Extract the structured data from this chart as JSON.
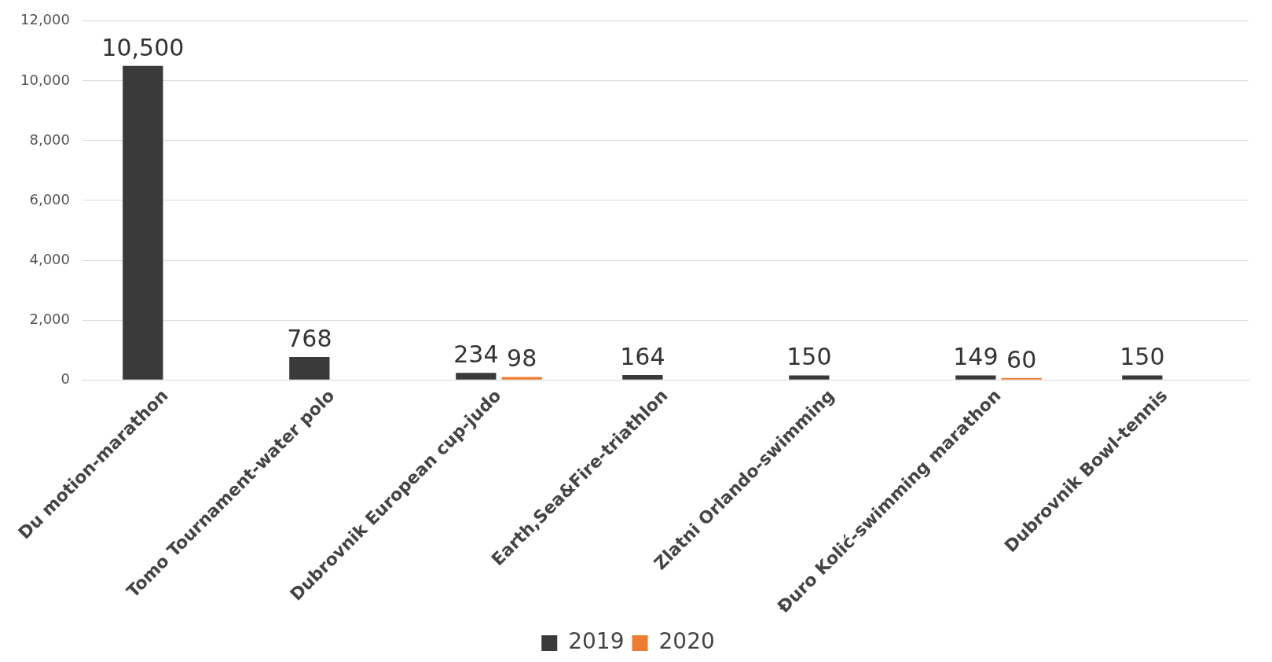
{
  "chart_data": {
    "type": "bar",
    "categories": [
      "Du motion-marathon",
      "Tomo Tournament-water polo",
      "Dubrovnik European cup-judo",
      "Earth,Sea&Fire-triathlon",
      "Zlatni Orlando-swimming",
      "Đuro Kolić-swimming marathon",
      "Dubrovnik Bowl-tennis"
    ],
    "series": [
      {
        "name": "2019",
        "color": "#3a3a3a",
        "values": [
          10500,
          768,
          234,
          164,
          150,
          149,
          150
        ],
        "value_labels": [
          "10,500",
          "768",
          "234",
          "164",
          "150",
          "149",
          "150"
        ]
      },
      {
        "name": "2020",
        "color": "#ed7d31",
        "values": [
          null,
          null,
          98,
          null,
          null,
          60,
          null
        ],
        "value_labels": [
          null,
          null,
          "98",
          null,
          null,
          "60",
          null
        ]
      }
    ],
    "ylim": [
      0,
      12000
    ],
    "yticks": [
      0,
      {
        "value": 2000,
        "label": "2,000"
      },
      {
        "value": 4000,
        "label": "4,000"
      },
      {
        "value": 6000,
        "label": "6,000"
      },
      {
        "value": 8000,
        "label": "8,000"
      },
      {
        "value": 10000,
        "label": "10,000"
      },
      {
        "value": 12000,
        "label": "12,000"
      }
    ],
    "grid": "y",
    "legend": "bottom"
  }
}
